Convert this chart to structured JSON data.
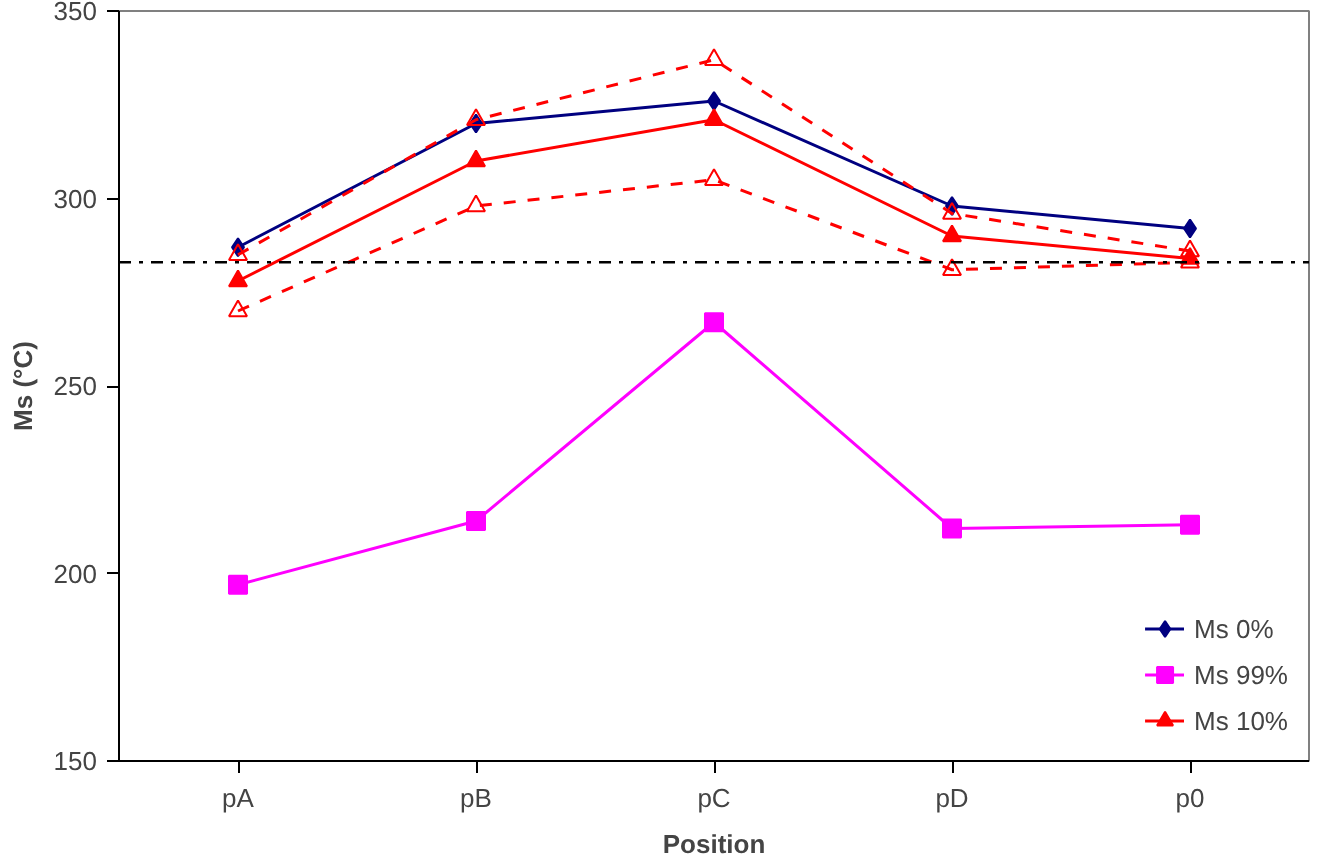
{
  "chart_data": {
    "type": "line",
    "xlabel": "Position",
    "ylabel": "Ms (°C)",
    "categories": [
      "pA",
      "pB",
      "pC",
      "pD",
      "p0"
    ],
    "series": [
      {
        "name": "Ms 0%",
        "color": "#000080",
        "marker": "diamond",
        "line_style": "solid",
        "values": [
          287,
          320,
          326,
          298,
          292
        ]
      },
      {
        "name": "Ms 99%",
        "color": "#ff00ff",
        "marker": "square",
        "line_style": "solid",
        "values": [
          197,
          214,
          267,
          212,
          213
        ]
      },
      {
        "name": "Ms 10%",
        "color": "#ff0000",
        "marker": "triangle",
        "line_style": "solid",
        "values": [
          278,
          310,
          321,
          290,
          284
        ]
      },
      {
        "color": "#ff0000",
        "marker": "triangle_open",
        "line_style": "dashed",
        "values": [
          285,
          321,
          337,
          296,
          286
        ]
      },
      {
        "color": "#ff0000",
        "marker": "triangle_open",
        "line_style": "dashed",
        "values": [
          270,
          298,
          305,
          281,
          283
        ]
      }
    ],
    "ylim": [
      150,
      350
    ],
    "yticks": [
      150,
      200,
      250,
      300,
      350
    ],
    "ref_lines": [
      {
        "axis": "y",
        "value": 283,
        "color": "#000000",
        "line_style": "dashdot"
      }
    ],
    "grid": false,
    "legend": "bottom right"
  }
}
